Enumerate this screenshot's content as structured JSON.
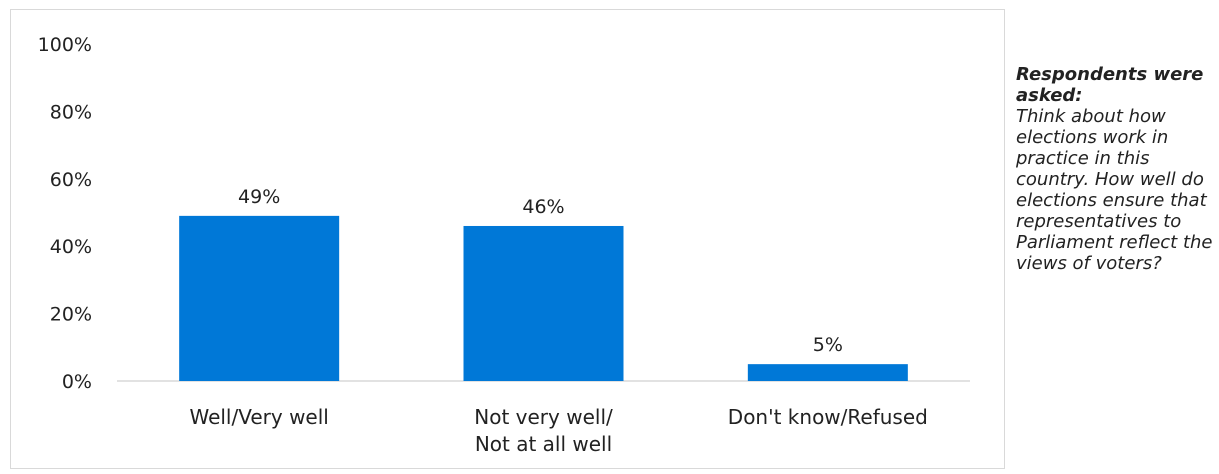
{
  "chart_data": {
    "type": "bar",
    "categories": [
      [
        "Well/Very well"
      ],
      [
        "Not very well/",
        "Not at all well"
      ],
      [
        "Don't know/Refused"
      ]
    ],
    "values": [
      49,
      46,
      5
    ],
    "value_labels": [
      "49%",
      "46%",
      "5%"
    ],
    "ylim": [
      0,
      100
    ],
    "yticks": [
      "0%",
      "20%",
      "40%",
      "60%",
      "80%",
      "100%"
    ],
    "ytick_values": [
      0,
      20,
      40,
      60,
      80,
      100
    ],
    "bar_color": "#0078d7",
    "axis_color": "#d9d9d9",
    "grid": false,
    "legend": "none"
  },
  "note": {
    "heading": "Respondents were asked:",
    "body": "Think about how elections work in practice in this country. How well do elections ensure that representatives to Parliament reflect the views of voters?"
  }
}
